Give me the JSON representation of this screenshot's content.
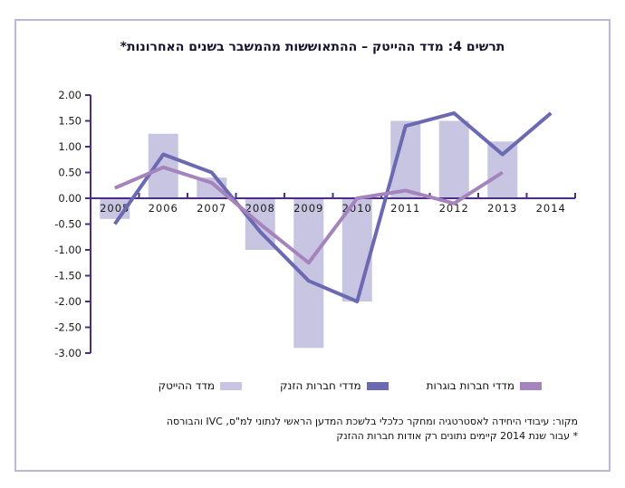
{
  "title": "תרשים 4: מדד ההייטק – ההתאוששות מהמשבר בשנים האחרונות*",
  "legend": {
    "items": [
      {
        "label": "מדדי חברות בוגרות",
        "color": "#a583bc"
      },
      {
        "label": "מדדי חברות הזנק",
        "color": "#6c69b3"
      },
      {
        "label": "מדד ההייטק",
        "color": "#c7c5e1"
      }
    ]
  },
  "footer": {
    "source_line": "מקור: עיבודי היחידה לאסטרטגיה ומחקר כלכלי בלשכת המדען הראשי לנתוני למ\"ס, IVC והבורסה",
    "footnote_line": "* עבור שנת 2014 קיימים נתונים רק אודות חברות ההזנק"
  },
  "chart_data": {
    "type": "combo_bar_line",
    "categories": [
      "2005",
      "2006",
      "2007",
      "2008",
      "2009",
      "2010",
      "2011",
      "2012",
      "2013",
      "2014"
    ],
    "series": [
      {
        "name": "מדד ההייטק",
        "type": "bar",
        "color": "#c7c5e1",
        "values": [
          -0.4,
          1.25,
          0.4,
          -1.0,
          -2.9,
          -2.0,
          1.5,
          1.5,
          1.1,
          null
        ]
      },
      {
        "name": "מדדי חברות הזנק",
        "type": "line",
        "color": "#6c69b3",
        "values": [
          -0.5,
          0.85,
          0.5,
          -0.65,
          -1.6,
          -2.0,
          1.4,
          1.65,
          0.85,
          1.65
        ]
      },
      {
        "name": "מדדי חברות בוגרות",
        "type": "line",
        "color": "#a583bc",
        "values": [
          0.2,
          0.6,
          0.3,
          -0.5,
          -1.25,
          0.0,
          0.15,
          -0.1,
          0.5,
          null
        ]
      }
    ],
    "ylim": [
      -3,
      2
    ],
    "ytick_step": 0.5,
    "ytick_format_decimals": 2,
    "axis_color": "#4b2d87",
    "grid": false,
    "legend_position": "bottom"
  }
}
